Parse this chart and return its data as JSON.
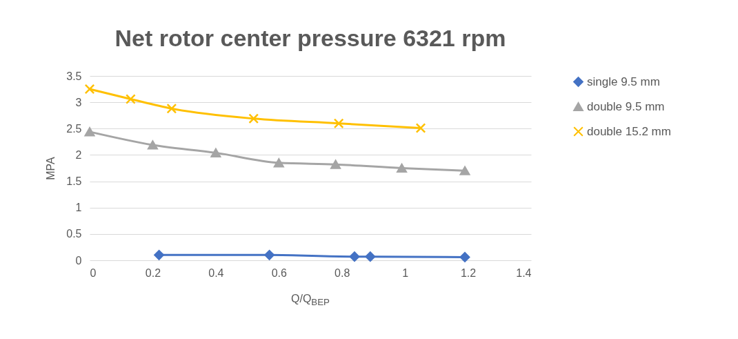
{
  "chart_data": {
    "type": "line",
    "title": "Net rotor center pressure 6321 rpm",
    "xlabel": "Q/Q$_{BEP}$",
    "ylabel": "MPA",
    "xlim": [
      0,
      1.4
    ],
    "xticks": [
      0,
      0.2,
      0.4,
      0.6,
      0.8,
      1,
      1.2,
      1.4
    ],
    "ylim": [
      0,
      3.5
    ],
    "yticks": [
      0,
      0.5,
      1,
      1.5,
      2,
      2.5,
      3,
      3.5
    ],
    "grid": "y",
    "legend": "right",
    "series": [
      {
        "name": "single 9.5 mm",
        "color": "#4472c4",
        "marker": "diamond",
        "x": [
          0.22,
          0.57,
          0.84,
          0.89,
          1.19
        ],
        "values": [
          0.1,
          0.1,
          0.07,
          0.07,
          0.06
        ]
      },
      {
        "name": "double 9.5 mm",
        "color": "#a5a5a5",
        "marker": "triangle",
        "x": [
          0,
          0.2,
          0.4,
          0.6,
          0.78,
          0.99,
          1.19
        ],
        "values": [
          2.44,
          2.19,
          2.04,
          1.85,
          1.82,
          1.75,
          1.7
        ]
      },
      {
        "name": "double 15.2 mm",
        "color": "#ffc000",
        "marker": "cross",
        "x": [
          0,
          0.13,
          0.26,
          0.52,
          0.79,
          1.05
        ],
        "values": [
          3.25,
          3.06,
          2.88,
          2.69,
          2.6,
          2.51
        ]
      }
    ]
  }
}
